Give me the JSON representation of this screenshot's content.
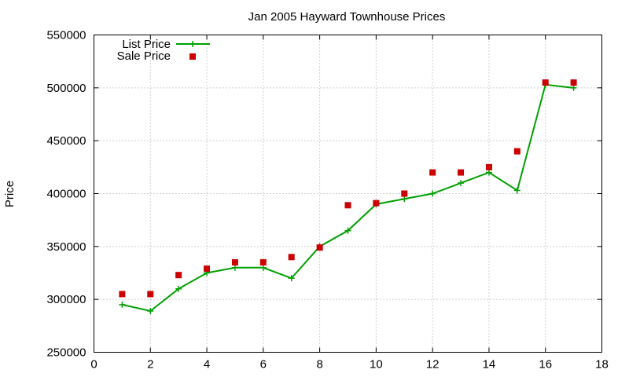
{
  "chart_data": {
    "type": "line",
    "title": "Jan 2005 Hayward Townhouse Prices",
    "xlabel": "",
    "ylabel": "Price",
    "xlim": [
      0,
      18
    ],
    "ylim": [
      250000,
      550000
    ],
    "xticks": [
      0,
      2,
      4,
      6,
      8,
      10,
      12,
      14,
      16,
      18
    ],
    "yticks": [
      250000,
      300000,
      350000,
      400000,
      450000,
      500000,
      550000
    ],
    "grid": true,
    "legend_position": "top-left",
    "series": [
      {
        "name": "List Price",
        "style": "line+cross",
        "color": "#00a000",
        "x": [
          1,
          2,
          3,
          4,
          5,
          6,
          7,
          8,
          9,
          10,
          11,
          12,
          13,
          14,
          15,
          16,
          17
        ],
        "y": [
          295000,
          289000,
          310000,
          325000,
          330000,
          330000,
          320000,
          350000,
          365000,
          390000,
          395000,
          400000,
          410000,
          420000,
          403000,
          503000,
          500000
        ]
      },
      {
        "name": "Sale Price",
        "style": "square-marker",
        "color": "#cc0000",
        "x": [
          1,
          2,
          3,
          4,
          5,
          6,
          7,
          8,
          9,
          10,
          11,
          12,
          13,
          14,
          15,
          16,
          17
        ],
        "y": [
          305000,
          305000,
          323000,
          329000,
          335000,
          335000,
          340000,
          349000,
          389000,
          391000,
          400000,
          420000,
          420000,
          425000,
          440000,
          505000,
          505000
        ]
      }
    ]
  }
}
